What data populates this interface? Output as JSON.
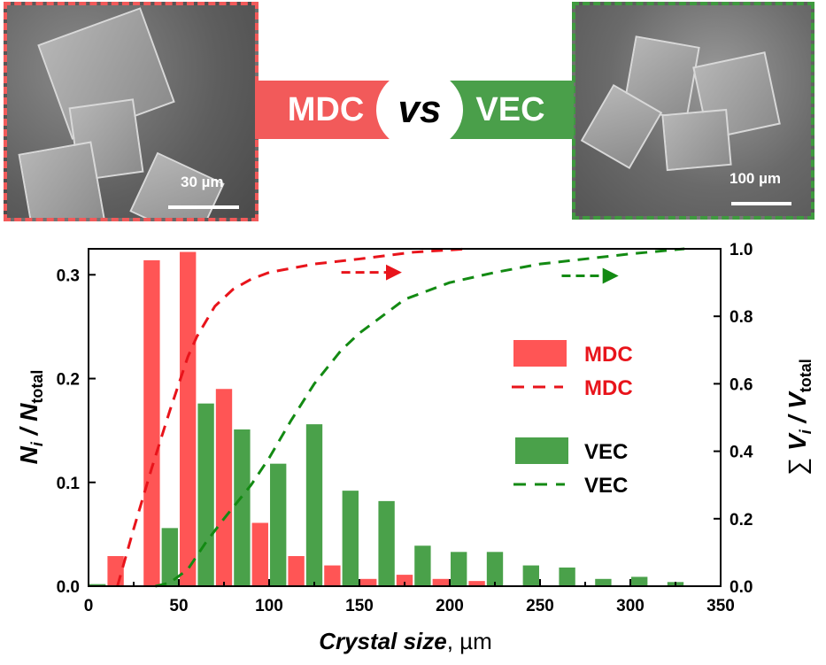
{
  "images": {
    "left": {
      "scale_label": "30 µm"
    },
    "right": {
      "scale_label": "100 µm"
    }
  },
  "banner": {
    "left": "MDC",
    "middle": "vs",
    "right": "VEC"
  },
  "colors": {
    "mdc_bar": "#ff5555",
    "mdc_line": "#e8141b",
    "vec_bar": "#4aa14a",
    "vec_line": "#138a13"
  },
  "chart_data": {
    "type": "bar",
    "xlabel_main": "Crystal  size",
    "xlabel_unit": ", µm",
    "ylabel_left": {
      "sym": "N",
      "sub1": "i",
      "mid": " / N",
      "sub2": "total"
    },
    "ylabel_right": {
      "sum": "∑ ",
      "sym": "V",
      "sub1": "i",
      "mid": " / V",
      "sub2": "total"
    },
    "xlim": [
      0,
      350
    ],
    "ylim_left": [
      0,
      0.325
    ],
    "ylim_right": [
      0,
      1.0
    ],
    "xticks": [
      "0",
      "50",
      "100",
      "150",
      "200",
      "250",
      "300",
      "350"
    ],
    "yticks_left": [
      "0.0",
      "0.1",
      "0.2",
      "0.3"
    ],
    "yticks_right": [
      "0.0",
      "0.2",
      "0.4",
      "0.6",
      "0.8",
      "1.0"
    ],
    "bar_width": 9,
    "series": [
      {
        "name": "MDC",
        "kind": "bar",
        "axis": "left",
        "x": [
          15,
          35,
          55,
          75,
          95,
          115,
          135,
          155,
          175,
          195,
          215
        ],
        "values": [
          0.029,
          0.314,
          0.322,
          0.19,
          0.061,
          0.029,
          0.02,
          0.007,
          0.011,
          0.007,
          0.005
        ]
      },
      {
        "name": "VEC",
        "kind": "bar",
        "axis": "left",
        "x": [
          5,
          45,
          65,
          85,
          105,
          125,
          145,
          165,
          185,
          205,
          225,
          245,
          265,
          285,
          305,
          325
        ],
        "values": [
          0.002,
          0.056,
          0.176,
          0.151,
          0.118,
          0.156,
          0.092,
          0.082,
          0.039,
          0.033,
          0.033,
          0.02,
          0.018,
          0.007,
          0.009,
          0.004
        ]
      },
      {
        "name": "MDC",
        "kind": "line-dashed",
        "axis": "right",
        "x": [
          16,
          25,
          35,
          45,
          50,
          55,
          60,
          70,
          80,
          90,
          100,
          125,
          150,
          180,
          210
        ],
        "values": [
          0.0,
          0.17,
          0.35,
          0.52,
          0.6,
          0.68,
          0.74,
          0.83,
          0.88,
          0.91,
          0.93,
          0.955,
          0.97,
          0.99,
          1.0
        ]
      },
      {
        "name": "VEC",
        "kind": "line-dashed",
        "axis": "right",
        "x": [
          37,
          45,
          55,
          65,
          75,
          90,
          100,
          112,
          125,
          140,
          150,
          165,
          175,
          200,
          225,
          250,
          275,
          300,
          330
        ],
        "values": [
          0.0,
          0.01,
          0.05,
          0.13,
          0.2,
          0.3,
          0.38,
          0.49,
          0.6,
          0.7,
          0.75,
          0.81,
          0.85,
          0.9,
          0.93,
          0.955,
          0.97,
          0.985,
          1.0
        ]
      }
    ],
    "arrows": [
      {
        "series": "MDC",
        "from_x": 140,
        "to_x": 172,
        "y_right": 0.93
      },
      {
        "series": "VEC",
        "from_x": 262,
        "to_x": 292,
        "y_right": 0.92
      }
    ],
    "legend": {
      "placement": "center-right",
      "entries": [
        "MDC",
        "MDC",
        "VEC",
        "VEC"
      ]
    }
  }
}
